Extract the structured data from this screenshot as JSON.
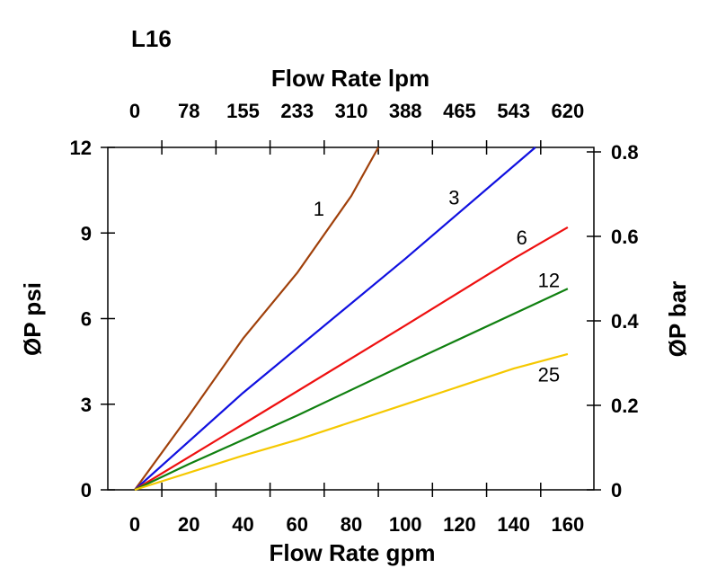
{
  "chart_data": {
    "type": "line",
    "title": "L16",
    "xlabel": "Flow Rate gpm",
    "x2label": "Flow Rate lpm",
    "ylabel": "ØP psi",
    "y2label": "ØP bar",
    "xlim": [
      -10,
      170
    ],
    "ylim": [
      0,
      12
    ],
    "y2lim": [
      0,
      0.8
    ],
    "x_ticks": [
      "0",
      "20",
      "40",
      "60",
      "80",
      "100",
      "120",
      "140",
      "160"
    ],
    "x2_ticks": [
      "0",
      "78",
      "155",
      "233",
      "310",
      "388",
      "465",
      "543",
      "620"
    ],
    "y_ticks": [
      "0",
      "3",
      "6",
      "9",
      "12"
    ],
    "y2_ticks": [
      "0",
      "0.2",
      "0.4",
      "0.6",
      "0.8"
    ],
    "grid": false,
    "series": [
      {
        "name": "1",
        "color": "#a0400a",
        "x": [
          0,
          20,
          40,
          60,
          80,
          90
        ],
        "y": [
          0,
          2.6,
          5.3,
          7.6,
          10.3,
          12
        ]
      },
      {
        "name": "3",
        "color": "#1010e0",
        "x": [
          0,
          40,
          100,
          148
        ],
        "y": [
          0,
          3.4,
          8.1,
          12
        ]
      },
      {
        "name": "6",
        "color": "#ee1010",
        "x": [
          0,
          40,
          100,
          140,
          160
        ],
        "y": [
          0,
          2.3,
          5.76,
          8.1,
          9.2
        ]
      },
      {
        "name": "12",
        "color": "#108010",
        "x": [
          0,
          20,
          40,
          60,
          100,
          160
        ],
        "y": [
          0,
          0.9,
          1.75,
          2.6,
          4.4,
          7.05
        ]
      },
      {
        "name": "25",
        "color": "#f5c800",
        "x": [
          0,
          40,
          60,
          100,
          140,
          160
        ],
        "y": [
          0,
          1.2,
          1.75,
          3.0,
          4.25,
          4.76
        ]
      }
    ],
    "annotations": [
      {
        "text": "1",
        "x": 68,
        "y": 9.6
      },
      {
        "text": "3",
        "x": 118,
        "y": 10.0
      },
      {
        "text": "6",
        "x": 143,
        "y": 8.6
      },
      {
        "text": "12",
        "x": 153,
        "y": 7.1
      },
      {
        "text": "25",
        "x": 153,
        "y": 3.8
      }
    ]
  }
}
